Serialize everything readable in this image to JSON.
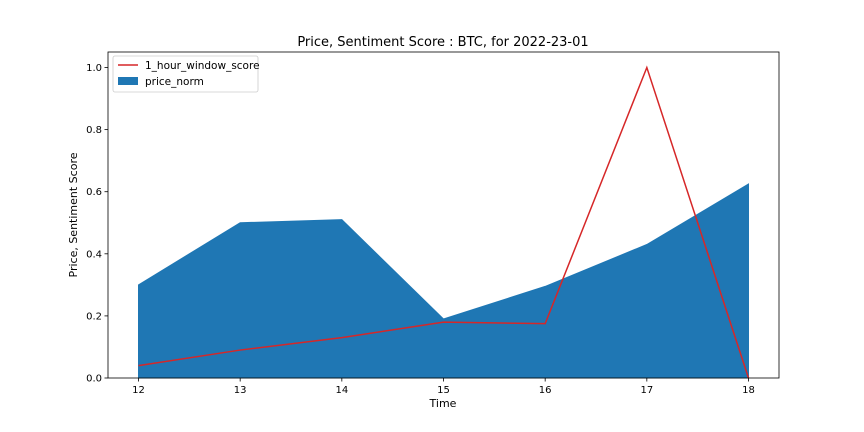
{
  "chart_data": {
    "type": "area",
    "title": "Price, Sentiment Score : BTC, for 2022-23-01",
    "xlabel": "Time",
    "ylabel": "Price, Sentiment Score",
    "x": [
      12,
      13,
      14,
      15,
      16,
      17,
      18
    ],
    "xlim": [
      11.7,
      18.3
    ],
    "ylim": [
      0.0,
      1.05
    ],
    "xticks": [
      "12",
      "13",
      "14",
      "15",
      "16",
      "17",
      "18"
    ],
    "yticks": [
      "0.0",
      "0.2",
      "0.4",
      "0.6",
      "0.8",
      "1.0"
    ],
    "grid": false,
    "legend_position": "top-left",
    "series": [
      {
        "name": "1_hour_window_score",
        "kind": "line",
        "color": "#d62728",
        "values": [
          0.04,
          0.09,
          0.13,
          0.18,
          0.175,
          1.0,
          0.0
        ]
      },
      {
        "name": "price_norm",
        "kind": "area",
        "color": "#1f77b4",
        "values": [
          0.3,
          0.5,
          0.51,
          0.19,
          0.295,
          0.43,
          0.625
        ]
      }
    ]
  }
}
